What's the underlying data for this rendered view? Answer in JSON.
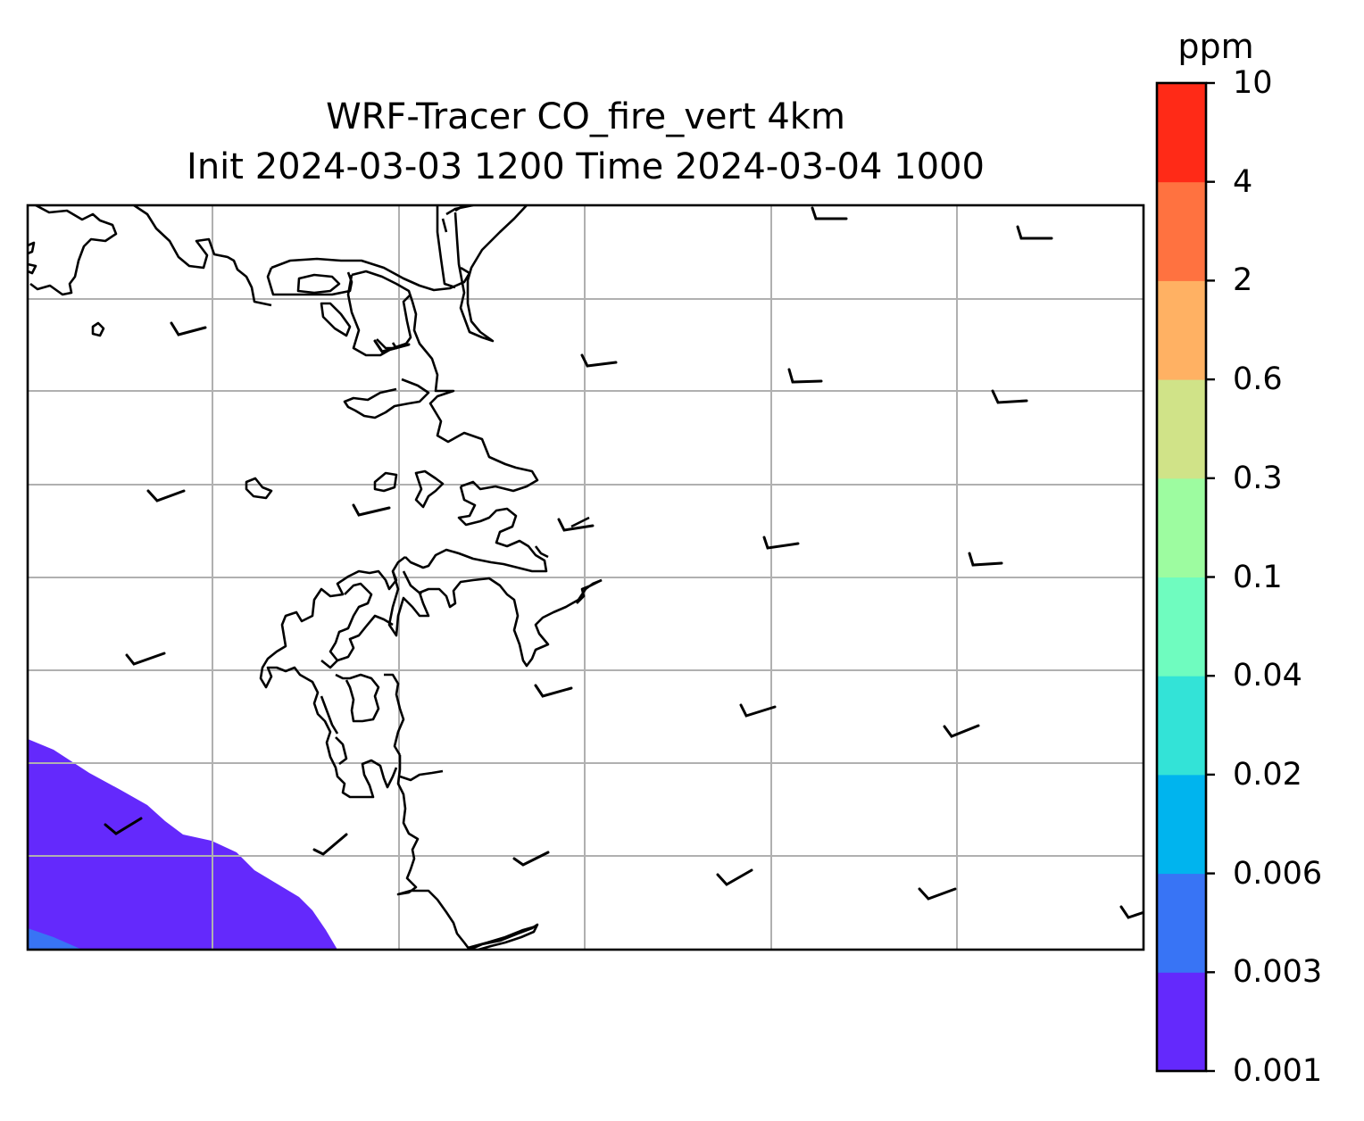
{
  "title": "WRF-Tracer CO_fire_vert 4km",
  "subtitle": "Init 2024-03-03 1200 Time 2024-03-04 1000",
  "colorbar": {
    "unit": "ppm",
    "levels": [
      "0.001",
      "0.003",
      "0.006",
      "0.02",
      "0.04",
      "0.1",
      "0.3",
      "0.6",
      "2",
      "4",
      "10"
    ],
    "colors": [
      "#6429fc",
      "#3874f5",
      "#00b4ee",
      "#33e3d7",
      "#6ffcbf",
      "#9dfca0",
      "#d0e388",
      "#ffb163",
      "#ff7240",
      "#ff2a17"
    ]
  },
  "map": {
    "features": [
      "coastlines",
      "gridlines",
      "wind-barbs",
      "tracer-contours"
    ],
    "shaded_region_colors": [
      "#6429fc",
      "#3874f5"
    ]
  }
}
